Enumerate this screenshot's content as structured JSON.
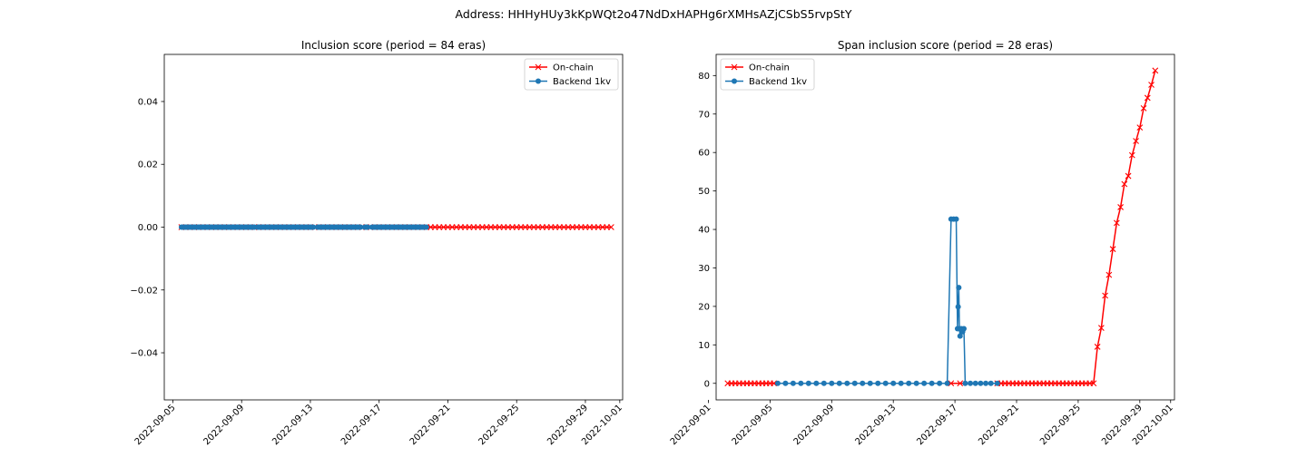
{
  "figure": {
    "suptitle": "Address: HHHyHUy3kKpWQt2o47NdDxHAPHg6rXMHsAZjCSbS5rvpStY"
  },
  "colors": {
    "on_chain": "#ff0000",
    "backend": "#1f77b4",
    "axes": "#000000",
    "background": "#ffffff"
  },
  "chart_data": [
    {
      "type": "line",
      "title": "Inclusion score (period = 84 eras)",
      "xlabel": "",
      "ylabel": "",
      "x_type": "date",
      "xlim": [
        "2022-09-04T12:00",
        "2022-10-01T04:00"
      ],
      "ylim": [
        -0.055,
        0.055
      ],
      "x_ticks": [
        "2022-09-05",
        "2022-09-09",
        "2022-09-13",
        "2022-09-17",
        "2022-09-21",
        "2022-09-25",
        "2022-09-29",
        "2022-10-01"
      ],
      "y_ticks": [
        -0.04,
        -0.02,
        0.0,
        0.02,
        0.04
      ],
      "y_tick_labels": [
        "−0.04",
        "−0.02",
        "0.00",
        "0.02",
        "0.04"
      ],
      "grid": false,
      "legend": {
        "position": "upper right"
      },
      "series": [
        {
          "name": "On-chain",
          "color": "#ff0000",
          "marker": "x",
          "sampling": "every 6 hours",
          "start": "2022-09-05T12:00",
          "end": "2022-09-30T12:00",
          "value": 0
        },
        {
          "name": "Backend 1kv",
          "color": "#1f77b4",
          "marker": "o",
          "sampling": "every 2 hours",
          "start": "2022-09-05T12:00",
          "end": "2022-09-19T18:00",
          "gaps": [
            [
              "2022-09-09T18:00",
              "2022-09-09T22:00"
            ],
            [
              "2022-09-13T04:00",
              "2022-09-13T10:00"
            ],
            [
              "2022-09-15T22:00",
              "2022-09-16T04:00"
            ],
            [
              "2022-09-16T08:00",
              "2022-09-16T14:00"
            ]
          ],
          "value": 0
        }
      ]
    },
    {
      "type": "line",
      "title": "Span inclusion score (period = 28 eras)",
      "xlabel": "",
      "ylabel": "",
      "x_type": "date",
      "xlim": [
        "2022-09-01T12:00",
        "2022-10-01T06:00"
      ],
      "ylim": [
        -4.3,
        85.5
      ],
      "x_ticks": [
        "2022-09-01",
        "2022-09-05",
        "2022-09-09",
        "2022-09-13",
        "2022-09-17",
        "2022-09-21",
        "2022-09-25",
        "2022-09-29",
        "2022-10-01"
      ],
      "y_ticks": [
        0,
        10,
        20,
        30,
        40,
        50,
        60,
        70,
        80
      ],
      "grid": false,
      "legend": {
        "position": "upper left"
      },
      "series": [
        {
          "name": "On-chain",
          "color": "#ff0000",
          "marker": "x",
          "points": [
            [
              "2022-09-02T06:00",
              0
            ],
            [
              "2022-09-02T12:00",
              0
            ],
            [
              "2022-09-02T18:00",
              0
            ],
            [
              "2022-09-03T00:00",
              0
            ],
            [
              "2022-09-03T06:00",
              0
            ],
            [
              "2022-09-03T12:00",
              0
            ],
            [
              "2022-09-03T18:00",
              0
            ],
            [
              "2022-09-04T00:00",
              0
            ],
            [
              "2022-09-04T06:00",
              0
            ],
            [
              "2022-09-04T12:00",
              0
            ],
            [
              "2022-09-04T18:00",
              0
            ],
            [
              "2022-09-05T00:00",
              0
            ],
            [
              "2022-09-05T06:00",
              0
            ],
            [
              "2022-09-16T18:00",
              0
            ],
            [
              "2022-09-17T08:00",
              0
            ],
            [
              "2022-09-19T18:00",
              0
            ],
            [
              "2022-09-20T00:00",
              0
            ],
            [
              "2022-09-20T06:00",
              0
            ],
            [
              "2022-09-20T12:00",
              0
            ],
            [
              "2022-09-20T18:00",
              0
            ],
            [
              "2022-09-21T00:00",
              0
            ],
            [
              "2022-09-21T06:00",
              0
            ],
            [
              "2022-09-21T12:00",
              0
            ],
            [
              "2022-09-21T18:00",
              0
            ],
            [
              "2022-09-22T00:00",
              0
            ],
            [
              "2022-09-22T06:00",
              0
            ],
            [
              "2022-09-22T12:00",
              0
            ],
            [
              "2022-09-22T18:00",
              0
            ],
            [
              "2022-09-23T00:00",
              0
            ],
            [
              "2022-09-23T06:00",
              0
            ],
            [
              "2022-09-23T12:00",
              0
            ],
            [
              "2022-09-23T18:00",
              0
            ],
            [
              "2022-09-24T00:00",
              0
            ],
            [
              "2022-09-24T06:00",
              0
            ],
            [
              "2022-09-24T12:00",
              0
            ],
            [
              "2022-09-24T18:00",
              0
            ],
            [
              "2022-09-25T00:00",
              0
            ],
            [
              "2022-09-25T06:00",
              0
            ],
            [
              "2022-09-25T12:00",
              0
            ],
            [
              "2022-09-25T18:00",
              0
            ],
            [
              "2022-09-26T00:00",
              0
            ],
            [
              "2022-09-26T06:00",
              9.5
            ],
            [
              "2022-09-26T12:00",
              14.4
            ],
            [
              "2022-09-26T18:00",
              22.8
            ],
            [
              "2022-09-27T00:00",
              28.2
            ],
            [
              "2022-09-27T06:00",
              34.9
            ],
            [
              "2022-09-27T12:00",
              41.7
            ],
            [
              "2022-09-27T18:00",
              45.8
            ],
            [
              "2022-09-28T00:00",
              51.8
            ],
            [
              "2022-09-28T06:00",
              53.9
            ],
            [
              "2022-09-28T12:00",
              59.3
            ],
            [
              "2022-09-28T18:00",
              63.0
            ],
            [
              "2022-09-29T00:00",
              66.5
            ],
            [
              "2022-09-29T06:00",
              71.5
            ],
            [
              "2022-09-29T12:00",
              74.2
            ],
            [
              "2022-09-29T18:00",
              77.6
            ],
            [
              "2022-09-30T00:00",
              81.3
            ]
          ]
        },
        {
          "name": "Backend 1kv",
          "color": "#1f77b4",
          "marker": "o",
          "points": [
            [
              "2022-09-05T12:00",
              0
            ],
            [
              "2022-09-06T00:00",
              0
            ],
            [
              "2022-09-06T12:00",
              0
            ],
            [
              "2022-09-07T00:00",
              0
            ],
            [
              "2022-09-07T12:00",
              0
            ],
            [
              "2022-09-08T00:00",
              0
            ],
            [
              "2022-09-08T12:00",
              0
            ],
            [
              "2022-09-09T00:00",
              0
            ],
            [
              "2022-09-09T12:00",
              0
            ],
            [
              "2022-09-10T00:00",
              0
            ],
            [
              "2022-09-10T12:00",
              0
            ],
            [
              "2022-09-11T00:00",
              0
            ],
            [
              "2022-09-11T12:00",
              0
            ],
            [
              "2022-09-12T00:00",
              0
            ],
            [
              "2022-09-12T12:00",
              0
            ],
            [
              "2022-09-13T00:00",
              0
            ],
            [
              "2022-09-13T12:00",
              0
            ],
            [
              "2022-09-14T00:00",
              0
            ],
            [
              "2022-09-14T12:00",
              0
            ],
            [
              "2022-09-15T00:00",
              0
            ],
            [
              "2022-09-15T12:00",
              0
            ],
            [
              "2022-09-16T00:00",
              0
            ],
            [
              "2022-09-16T12:00",
              0
            ],
            [
              "2022-09-16T18:00",
              42.7
            ],
            [
              "2022-09-16T22:00",
              42.7
            ],
            [
              "2022-09-17T02:00",
              42.7
            ],
            [
              "2022-09-17T04:00",
              14.2
            ],
            [
              "2022-09-17T05:00",
              19.9
            ],
            [
              "2022-09-17T06:00",
              24.9
            ],
            [
              "2022-09-17T07:00",
              14.2
            ],
            [
              "2022-09-17T08:00",
              12.3
            ],
            [
              "2022-09-17T10:00",
              14.2
            ],
            [
              "2022-09-17T12:00",
              13.4
            ],
            [
              "2022-09-17T14:00",
              14.2
            ],
            [
              "2022-09-17T16:00",
              0
            ],
            [
              "2022-09-18T00:00",
              0
            ],
            [
              "2022-09-18T08:00",
              0
            ],
            [
              "2022-09-18T16:00",
              0
            ],
            [
              "2022-09-19T00:00",
              0
            ],
            [
              "2022-09-19T08:00",
              0
            ],
            [
              "2022-09-19T18:00",
              0
            ]
          ]
        }
      ]
    }
  ]
}
